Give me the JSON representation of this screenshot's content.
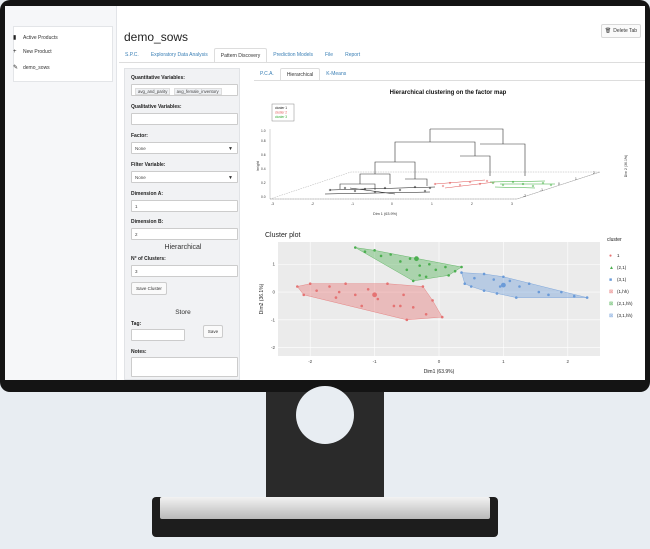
{
  "sidebar": {
    "items": [
      {
        "label": "Active Products",
        "icon": "bookmark-icon"
      },
      {
        "label": "New Product",
        "icon": "plus-icon"
      },
      {
        "label": "demo_sows",
        "icon": "pencil-icon"
      }
    ]
  },
  "header": {
    "title": "demo_sows",
    "delete_label": "Delete Tab",
    "tabs": [
      "S.P.C.",
      "Exploratory Data Analysis",
      "Pattern Discovery",
      "Prediction Models",
      "File",
      "Report"
    ],
    "active_tab": "Pattern Discovery"
  },
  "form": {
    "quant_label": "Quantitative Variables:",
    "quant_values": [
      "avg_and_parity",
      "avg_female_inventory"
    ],
    "qual_label": "Qualitative Variables:",
    "factor_label": "Factor:",
    "factor_value": "None",
    "filter_label": "Filter Variable:",
    "filter_value": "None",
    "dimA_label": "Dimension A:",
    "dimA_value": "1",
    "dimB_label": "Dimension B:",
    "dimB_value": "2",
    "hier_heading": "Hierarchical",
    "clusters_label": "N° of Clusters:",
    "clusters_value": "3",
    "save_cluster": "Save Cluster",
    "store_heading": "Store",
    "tag_label": "Tag:",
    "save_label": "Save",
    "notes_label": "Notes:"
  },
  "subtabs": [
    "P.C.A.",
    "Hierarchical",
    "K-Means"
  ],
  "active_subtab": "Hierarchical",
  "chart_data": [
    {
      "type": "scatter",
      "title": "Hierarchical clustering on the factor map",
      "xlabel": "Dim 1 (63.9%)",
      "ylabel": "height",
      "zlabel": "Dim 2 (36.1%)",
      "legend": [
        "cluster 1",
        "cluster 2",
        "cluster 3"
      ],
      "legend_position": "top-left",
      "y_ticks": [
        "0.0",
        "0.2",
        "0.4",
        "0.6",
        "0.8",
        "1.0"
      ],
      "x_ticks": [
        "-3",
        "-2",
        "-1",
        "0",
        "1",
        "2",
        "3"
      ],
      "z_ticks": [
        "-2",
        "-1",
        "0",
        "1",
        "2"
      ],
      "series": [
        {
          "name": "cluster 1",
          "color": "#111111"
        },
        {
          "name": "cluster 2",
          "color": "#e05555"
        },
        {
          "name": "cluster 3",
          "color": "#33aa33"
        }
      ]
    },
    {
      "type": "scatter",
      "title": "Cluster plot",
      "xlabel": "Dim1 (63.9%)",
      "ylabel": "Dim2 (36.1%)",
      "xlim": [
        -2.5,
        2.5
      ],
      "ylim": [
        -2.3,
        1.8
      ],
      "x_ticks": [
        "-2",
        "-1",
        "0",
        "1",
        "2"
      ],
      "y_ticks": [
        "-2",
        "-1",
        "0",
        "1"
      ],
      "grid": true,
      "legend_title": "cluster",
      "legend_position": "right",
      "legend": [
        "1",
        "(2,1)",
        "(3,1)",
        "(1,hh)",
        "(2,1,hh)",
        "(3,1,hh)"
      ],
      "series": [
        {
          "name": "1",
          "color": "#e57373",
          "points": [
            [
              -2.2,
              0.2
            ],
            [
              -2.0,
              0.3
            ],
            [
              -1.9,
              0.05
            ],
            [
              -1.7,
              0.2
            ],
            [
              -1.55,
              0.0
            ],
            [
              -1.45,
              0.3
            ],
            [
              -1.3,
              -0.1
            ],
            [
              -1.1,
              0.1
            ],
            [
              -0.95,
              -0.25
            ],
            [
              -0.8,
              0.3
            ],
            [
              -0.7,
              -0.5
            ],
            [
              -0.55,
              -0.1
            ],
            [
              -0.4,
              -0.55
            ],
            [
              -0.25,
              0.2
            ],
            [
              -0.1,
              -0.3
            ],
            [
              -0.5,
              -1.0
            ],
            [
              -0.2,
              -0.8
            ],
            [
              -1.2,
              -0.5
            ],
            [
              -0.6,
              -0.5
            ],
            [
              -1.6,
              -0.2
            ],
            [
              -2.1,
              -0.1
            ],
            [
              0.05,
              -0.9
            ]
          ],
          "center": [
            -1.0,
            -0.1
          ]
        },
        {
          "name": "(2,1)",
          "color": "#4caf50",
          "points": [
            [
              -1.3,
              1.6
            ],
            [
              -1.15,
              1.45
            ],
            [
              -1.0,
              1.5
            ],
            [
              -0.9,
              1.3
            ],
            [
              -0.75,
              1.35
            ],
            [
              -0.6,
              1.1
            ],
            [
              -0.45,
              1.2
            ],
            [
              -0.3,
              0.95
            ],
            [
              -0.15,
              1.0
            ],
            [
              -0.05,
              0.8
            ],
            [
              0.1,
              0.9
            ],
            [
              0.25,
              0.75
            ],
            [
              0.35,
              0.9
            ],
            [
              -0.5,
              0.8
            ],
            [
              -0.2,
              0.55
            ],
            [
              -0.4,
              0.4
            ],
            [
              -0.3,
              0.6
            ],
            [
              0.15,
              0.6
            ]
          ],
          "center": [
            -0.35,
            1.2
          ]
        },
        {
          "name": "(3,1)",
          "color": "#6b9bd8",
          "points": [
            [
              0.35,
              0.7
            ],
            [
              0.55,
              0.5
            ],
            [
              0.7,
              0.65
            ],
            [
              0.85,
              0.45
            ],
            [
              0.95,
              0.2
            ],
            [
              1.1,
              0.4
            ],
            [
              1.25,
              0.2
            ],
            [
              1.4,
              0.3
            ],
            [
              1.55,
              0.0
            ],
            [
              1.7,
              -0.1
            ],
            [
              1.9,
              0.0
            ],
            [
              2.1,
              -0.15
            ],
            [
              2.3,
              -0.2
            ],
            [
              0.5,
              0.2
            ],
            [
              0.7,
              0.05
            ],
            [
              0.9,
              -0.05
            ],
            [
              1.2,
              -0.2
            ],
            [
              0.4,
              0.3
            ],
            [
              1.0,
              0.55
            ]
          ],
          "center": [
            1.0,
            0.25
          ]
        }
      ]
    }
  ]
}
